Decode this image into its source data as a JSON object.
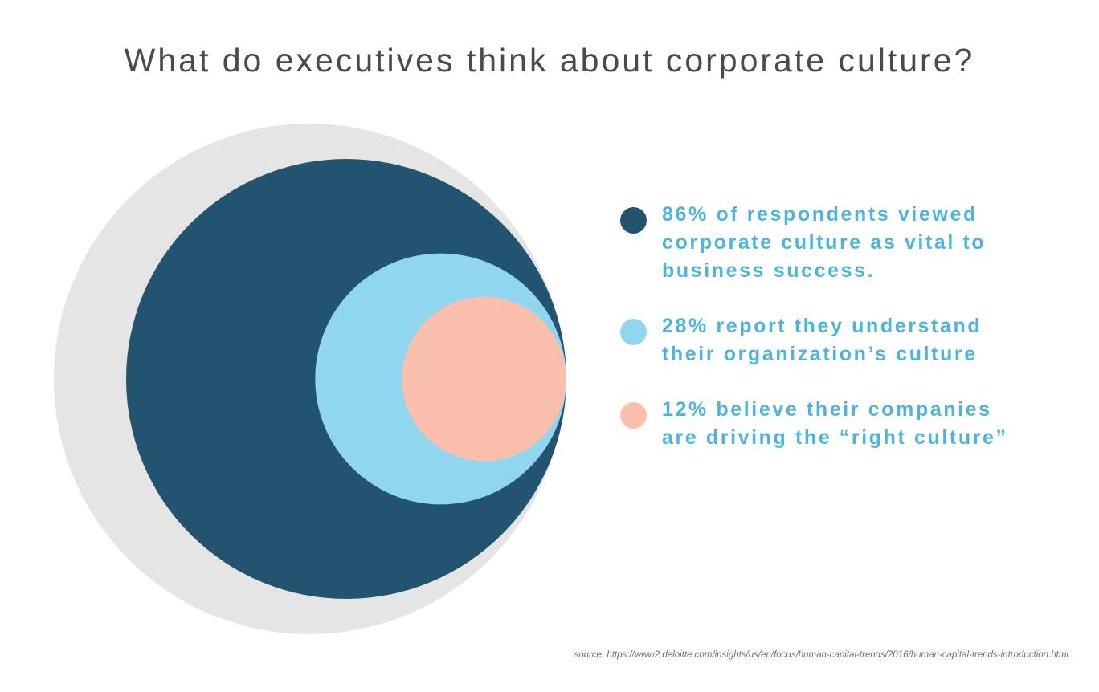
{
  "chart_data": {
    "type": "bubble",
    "title": "What do executives think about corporate culture?",
    "background_circle_color": "#e5e5e5",
    "series": [
      {
        "name": "86% of respondents viewed corporate culture as vital to business success.",
        "value": 86,
        "color": "#23546f"
      },
      {
        "name": "28% report they understand their organization’s culture",
        "value": 28,
        "color": "#8fd6ee"
      },
      {
        "name": "12% believe their companies are driving the “right culture”",
        "value": 12,
        "color": "#fbc0ad"
      }
    ],
    "source": "source: https://www2.deloitte.com/insights/us/en/focus/human-capital-trends/2016/human-capital-trends-introduction.html"
  }
}
